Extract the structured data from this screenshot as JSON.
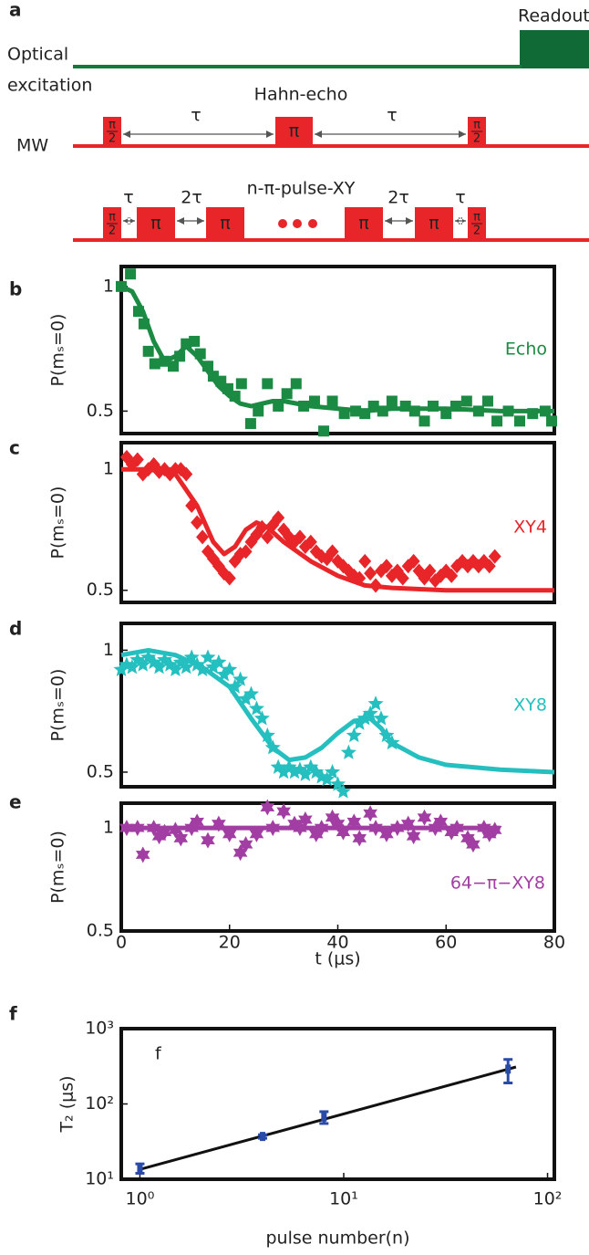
{
  "diagram": {
    "panel_label": "a",
    "readout": "Readout",
    "optical": [
      "Optical",
      "excitation"
    ],
    "hahn_echo": "Hahn-echo",
    "mw": "MW",
    "tau": "τ",
    "two_tau": "2τ",
    "pi": "π",
    "half_pi": [
      "π",
      "2"
    ],
    "xy_sequence": "n-π-pulse-XY"
  },
  "chart_data": [
    {
      "type": "scatter",
      "panel_label": "b",
      "ylabel": "P(mₛ=0)",
      "xlim": [
        0,
        80
      ],
      "ylim": [
        0.41,
        1.08
      ],
      "yticks": [
        0.5,
        1
      ],
      "series": [
        {
          "name": "Echo",
          "color": "#1b8a43",
          "marker": "square",
          "x": [
            0,
            1.7,
            3.2,
            4.2,
            5,
            6.2,
            8,
            9.6,
            10.8,
            12,
            13.5,
            14.6,
            16,
            17,
            18.4,
            19.7,
            21,
            22.2,
            23.9,
            25.3,
            27,
            29,
            30.6,
            32.3,
            33.7,
            35.7,
            37.4,
            39,
            41.2,
            43.3,
            45,
            46.6,
            48.3,
            50,
            52.5,
            54.2,
            56,
            57.6,
            60,
            61.8,
            63.8,
            66,
            67.7,
            69.4,
            71.5,
            73.6,
            76,
            78.3,
            79.5
          ],
          "values": [
            1.0,
            1.05,
            0.9,
            0.85,
            0.74,
            0.69,
            0.7,
            0.68,
            0.72,
            0.77,
            0.78,
            0.73,
            0.68,
            0.64,
            0.62,
            0.59,
            0.56,
            0.61,
            0.45,
            0.5,
            0.61,
            0.52,
            0.57,
            0.61,
            0.52,
            0.54,
            0.42,
            0.54,
            0.49,
            0.5,
            0.49,
            0.52,
            0.5,
            0.54,
            0.52,
            0.5,
            0.46,
            0.52,
            0.49,
            0.52,
            0.54,
            0.5,
            0.54,
            0.46,
            0.5,
            0.46,
            0.49,
            0.5,
            0.46
          ],
          "fit": {
            "x": [
              0,
              2,
              4,
              6,
              8,
              10,
              12,
              14,
              16,
              18,
              20,
              22,
              24,
              26,
              28,
              30,
              35,
              40,
              45,
              50,
              60,
              70,
              80
            ],
            "values": [
              1.0,
              0.98,
              0.9,
              0.78,
              0.7,
              0.72,
              0.76,
              0.72,
              0.66,
              0.6,
              0.56,
              0.53,
              0.52,
              0.53,
              0.54,
              0.54,
              0.52,
              0.51,
              0.5,
              0.51,
              0.51,
              0.5,
              0.5
            ]
          }
        }
      ]
    },
    {
      "type": "scatter",
      "panel_label": "c",
      "ylabel": "P(mₛ=0)",
      "xlim": [
        0,
        80
      ],
      "ylim": [
        0.45,
        1.11
      ],
      "yticks": [
        0.5,
        1
      ],
      "series": [
        {
          "name": "XY4",
          "color": "#e8262a",
          "marker": "diamond",
          "x": [
            1,
            2,
            3,
            4,
            5,
            6,
            7,
            8,
            9,
            10,
            11,
            12,
            13,
            14,
            15,
            16,
            17,
            18,
            19,
            20,
            21,
            22,
            23,
            24,
            25,
            26,
            27,
            28,
            29,
            30,
            31,
            32,
            33,
            34,
            35,
            36,
            37,
            38,
            39,
            40,
            41,
            42,
            43,
            44,
            45,
            46,
            47,
            48,
            49,
            50,
            51,
            52,
            53,
            54,
            55,
            56,
            57,
            58,
            59,
            60,
            61,
            62,
            63,
            64,
            65,
            66,
            67,
            68,
            69
          ],
          "values": [
            1.05,
            1.02,
            1.04,
            0.98,
            1.0,
            1.02,
            0.99,
            1.0,
            0.98,
            1.0,
            1.0,
            0.98,
            0.85,
            0.78,
            0.72,
            0.66,
            0.63,
            0.6,
            0.57,
            0.55,
            0.62,
            0.65,
            0.66,
            0.7,
            0.73,
            0.76,
            0.72,
            0.77,
            0.8,
            0.75,
            0.72,
            0.7,
            0.72,
            0.68,
            0.7,
            0.66,
            0.64,
            0.63,
            0.66,
            0.62,
            0.6,
            0.58,
            0.56,
            0.55,
            0.62,
            0.57,
            0.52,
            0.58,
            0.6,
            0.56,
            0.58,
            0.55,
            0.6,
            0.62,
            0.58,
            0.55,
            0.58,
            0.54,
            0.56,
            0.58,
            0.56,
            0.6,
            0.62,
            0.6,
            0.62,
            0.6,
            0.62,
            0.6,
            0.64
          ],
          "fit": {
            "x": [
              0,
              5,
              10,
              14,
              17,
              19,
              21,
              23,
              25,
              27,
              30,
              35,
              40,
              45,
              50,
              60,
              70,
              80
            ],
            "values": [
              1.0,
              1.0,
              0.98,
              0.85,
              0.7,
              0.65,
              0.68,
              0.75,
              0.78,
              0.76,
              0.7,
              0.62,
              0.56,
              0.52,
              0.51,
              0.5,
              0.5,
              0.5
            ]
          }
        }
      ]
    },
    {
      "type": "scatter",
      "panel_label": "d",
      "ylabel": "P(mₛ=0)",
      "xlim": [
        0,
        80
      ],
      "ylim": [
        0.44,
        1.11
      ],
      "yticks": [
        0.5,
        1
      ],
      "series": [
        {
          "name": "XY8",
          "color": "#25bfc0",
          "marker": "star",
          "x": [
            0,
            1,
            2,
            3,
            4,
            5,
            6,
            7,
            8,
            9,
            10,
            11,
            12,
            13,
            14,
            15,
            16,
            17,
            18,
            19,
            20,
            21,
            22,
            23,
            24,
            25,
            26,
            27,
            28,
            29,
            30,
            31,
            32,
            33,
            34,
            35,
            36,
            37,
            38,
            39,
            40,
            41,
            42,
            43,
            44,
            45,
            46,
            47,
            48,
            49,
            50
          ],
          "values": [
            0.92,
            0.94,
            0.93,
            0.96,
            0.94,
            0.97,
            0.95,
            0.93,
            0.96,
            0.94,
            0.92,
            0.95,
            0.93,
            0.97,
            0.94,
            0.92,
            0.97,
            0.93,
            0.95,
            0.9,
            0.92,
            0.85,
            0.88,
            0.8,
            0.82,
            0.76,
            0.72,
            0.65,
            0.6,
            0.52,
            0.5,
            0.52,
            0.5,
            0.51,
            0.49,
            0.52,
            0.5,
            0.48,
            0.47,
            0.5,
            0.45,
            0.42,
            0.58,
            0.65,
            0.7,
            0.72,
            0.74,
            0.78,
            0.72,
            0.65,
            0.62
          ],
          "fit": {
            "x": [
              0,
              5,
              10,
              15,
              20,
              24,
              28,
              31,
              34,
              37,
              40,
              43,
              46,
              48,
              50,
              55,
              60,
              70,
              80
            ],
            "values": [
              0.98,
              1.0,
              0.98,
              0.93,
              0.85,
              0.72,
              0.6,
              0.55,
              0.56,
              0.6,
              0.66,
              0.71,
              0.72,
              0.68,
              0.62,
              0.56,
              0.53,
              0.51,
              0.5
            ]
          }
        }
      ]
    },
    {
      "type": "scatter",
      "panel_label": "e",
      "ylabel": "P(mₛ=0)",
      "xlabel": "t (μs)",
      "xlim": [
        0,
        80
      ],
      "ylim": [
        0.5,
        1.12
      ],
      "yticks": [
        0.5,
        1
      ],
      "xticks": [
        0,
        20,
        40,
        60,
        80
      ],
      "series": [
        {
          "name": "64−π−XY8",
          "color": "#a23ea3",
          "marker": "hexagram",
          "x": [
            1,
            3,
            4,
            6,
            7,
            8,
            10,
            11,
            13,
            14,
            16,
            18,
            20,
            22,
            23,
            25,
            27,
            28,
            30,
            32,
            33,
            34,
            36,
            37,
            39,
            40,
            41,
            43,
            44,
            46,
            47,
            49,
            51,
            53,
            54,
            56,
            58,
            59,
            61,
            62,
            64,
            65,
            67,
            68,
            69
          ],
          "values": [
            1.0,
            1.0,
            0.87,
            1.0,
            0.96,
            0.98,
            0.99,
            0.95,
            1.0,
            1.03,
            0.94,
            1.02,
            0.97,
            0.88,
            0.92,
            0.97,
            1.1,
            1.0,
            1.08,
            1.02,
            1.0,
            1.04,
            0.97,
            1.0,
            1.05,
            1.02,
            0.98,
            1.03,
            0.95,
            1.07,
            1.0,
            0.97,
            1.0,
            1.02,
            0.96,
            1.05,
            1.0,
            1.03,
            0.98,
            1.0,
            0.95,
            0.92,
            1.0,
            0.97,
            0.99
          ],
          "fit": {
            "x": [
              0,
              70
            ],
            "values": [
              1.0,
              1.0
            ]
          }
        }
      ]
    },
    {
      "type": "errorbar",
      "panel_label": "f",
      "annotation": "f",
      "ylabel": "T₂ (μs)",
      "xlabel": "pulse number(n)",
      "xscale": "log",
      "yscale": "log",
      "xlim": [
        0.81,
        108
      ],
      "ylim": [
        10,
        1000
      ],
      "xticks": [
        {
          "value": 1,
          "label": "10⁰"
        },
        {
          "value": 10,
          "label": "10¹"
        },
        {
          "value": 100,
          "label": "10²"
        }
      ],
      "yticks": [
        {
          "value": 10,
          "label": "10¹"
        },
        {
          "value": 100,
          "label": "10²"
        },
        {
          "value": 1000,
          "label": "10³"
        }
      ],
      "series": [
        {
          "color": "#2a4aa8",
          "marker": "square",
          "x": [
            1,
            4,
            8,
            64
          ],
          "values": [
            14,
            37,
            67,
            290
          ],
          "errors": [
            2,
            2,
            12,
            100
          ],
          "fit": {
            "color": "#111111",
            "x": [
              1,
              70
            ],
            "values": [
              13.5,
              310
            ]
          }
        }
      ]
    }
  ]
}
